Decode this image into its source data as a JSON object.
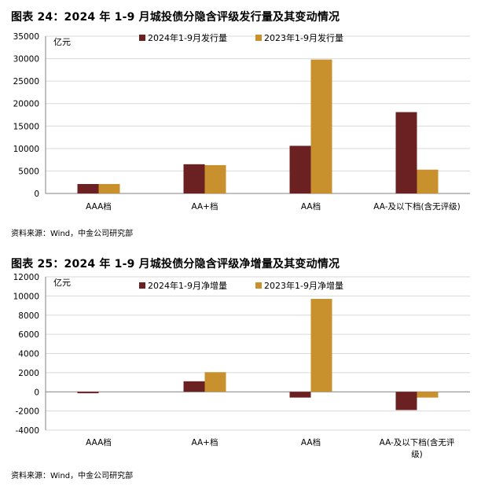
{
  "charts": [
    {
      "title": "图表 24：2024 年 1-9 月城投债分隐含评级发行量及其变动情况",
      "source": "资料来源：Wind，中金公司研究部"
    },
    {
      "title": "图表 25：2024 年 1-9 月城投债分隐含评级净增量及其变动情况",
      "source": "资料来源：Wind，中金公司研究部"
    }
  ],
  "colors": {
    "series2024": "#6B2121",
    "series2023": "#C8912E",
    "gridline": "#D9D9D9",
    "axis": "#808080"
  },
  "chart_data": [
    {
      "type": "bar",
      "title": "图表 24：2024 年 1-9 月城投债分隐含评级发行量及其变动情况",
      "unit_label": "亿元",
      "categories": [
        "AAA档",
        "AA+档",
        "AA档",
        "AA-及以下档(含无评级)"
      ],
      "category_lines": [
        [
          "AAA档"
        ],
        [
          "AA+档"
        ],
        [
          "AA档"
        ],
        [
          "AA-及以下档(含无评级)"
        ]
      ],
      "series": [
        {
          "name": "2024年1-9月发行量",
          "values": [
            2100,
            6500,
            10600,
            18100
          ]
        },
        {
          "name": "2023年1-9月发行量",
          "values": [
            2100,
            6300,
            29800,
            5300
          ]
        }
      ],
      "ylim": [
        0,
        35000
      ],
      "yticks": [
        0,
        5000,
        10000,
        15000,
        20000,
        25000,
        30000,
        35000
      ],
      "grid": true,
      "legend": "top"
    },
    {
      "type": "bar",
      "title": "图表 25：2024 年 1-9 月城投债分隐含评级净增量及其变动情况",
      "unit_label": "亿元",
      "categories": [
        "AAA档",
        "AA+档",
        "AA档",
        "AA-及以下档(含无评级)"
      ],
      "category_lines": [
        [
          "AAA档"
        ],
        [
          "AA+档"
        ],
        [
          "AA档"
        ],
        [
          "AA-及以下档(含无评",
          "级)"
        ]
      ],
      "series": [
        {
          "name": "2024年1-9月净增量",
          "values": [
            -150,
            1100,
            -600,
            -1900
          ]
        },
        {
          "name": "2023年1-9月净增量",
          "values": [
            0,
            2050,
            9700,
            -600
          ]
        }
      ],
      "ylim": [
        -4000,
        12000
      ],
      "yticks": [
        -4000,
        -2000,
        0,
        2000,
        4000,
        6000,
        8000,
        10000,
        12000
      ],
      "grid": true,
      "legend": "top"
    }
  ]
}
